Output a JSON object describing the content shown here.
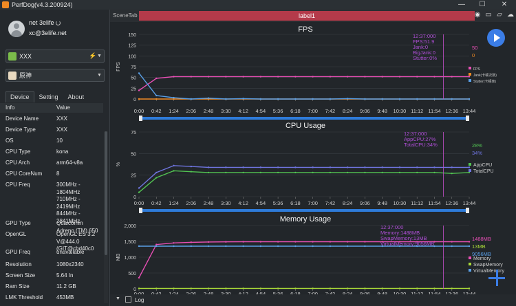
{
  "window": {
    "title": "PerfDog(v4.3.200924)",
    "minimize": "—",
    "restore": "☐",
    "close": "✕"
  },
  "user": {
    "name": "net 3elife",
    "email": "xc@3elife.net"
  },
  "device_select": {
    "value": "XXX"
  },
  "app_select": {
    "value": "原神"
  },
  "tabs": [
    "Device",
    "Setting",
    "About"
  ],
  "info": {
    "header": {
      "key": "Info",
      "value": "Value"
    },
    "rows": [
      {
        "key": "Device Name",
        "value": "XXX"
      },
      {
        "key": "Device Type",
        "value": "XXX"
      },
      {
        "key": "OS",
        "value": "10"
      },
      {
        "key": "CPU Type",
        "value": "kona"
      },
      {
        "key": "CPU Arch",
        "value": "arm64-v8a"
      },
      {
        "key": "CPU CoreNum",
        "value": "8"
      },
      {
        "key": "CPU Freq",
        "value": "300MHz -\n1804MHz\n710MHz -\n2419MHz\n844MHz -\n2841MHz"
      },
      {
        "key": "GPU Type",
        "value": "Qualcomm\nAdreno (TM) 650"
      },
      {
        "key": "OpenGL",
        "value": "OpenGL ES 3.2\nV@444.0\n(GIT@cbd40c0"
      },
      {
        "key": "GPU Freq",
        "value": "unavailable"
      },
      {
        "key": "Resolution",
        "value": "1080x2340"
      },
      {
        "key": "Screen Size",
        "value": "5.64 In"
      },
      {
        "key": "Ram Size",
        "value": "11.2 GB"
      },
      {
        "key": "LMK Threshold",
        "value": "453MB"
      }
    ]
  },
  "scene_tab": {
    "label": "SceneTab",
    "tab": "label1"
  },
  "time_ticks": [
    "0:00",
    "0:42",
    "1:24",
    "2:06",
    "2:48",
    "3:30",
    "4:12",
    "4:54",
    "5:36",
    "6:18",
    "7:00",
    "7:42",
    "8:24",
    "9:06",
    "9:48",
    "10:30",
    "11:12",
    "11:54",
    "12:36",
    "13:44"
  ],
  "charts": [
    {
      "title": "FPS",
      "ylabel": "FPS",
      "yticks": [
        "0",
        "25",
        "50",
        "75",
        "100",
        "125",
        "150"
      ],
      "tooltip": [
        "12:37:000",
        "FPS:51.9",
        "Jank:0",
        "BigJank:0",
        "Stutter:0%"
      ],
      "current_values": [
        {
          "text": "50",
          "color": "#e84fb5"
        },
        {
          "text": "0",
          "color": "#f08a24"
        }
      ],
      "legend": [
        {
          "name": "FPS",
          "color": "#e84fb5"
        },
        {
          "name": "Jank(卡顿次数)",
          "color": "#f08a24"
        },
        {
          "name": "Stutter(卡顿率)",
          "color": "#5aa0e8"
        }
      ]
    },
    {
      "title": "CPU Usage",
      "ylabel": "%",
      "yticks": [
        "0",
        "25",
        "50",
        "75"
      ],
      "tooltip": [
        "12:37:000",
        "AppCPU:27%",
        "TotalCPU:34%"
      ],
      "current_values": [
        {
          "text": "28%",
          "color": "#52c352"
        },
        {
          "text": "34%",
          "color": "#6f75e0"
        }
      ],
      "legend": [
        {
          "name": "AppCPU",
          "color": "#52c352"
        },
        {
          "name": "TotalCPU",
          "color": "#6f75e0"
        }
      ]
    },
    {
      "title": "Memory Usage",
      "ylabel": "MB",
      "yticks": [
        "0",
        "500",
        "1,000",
        "1,500",
        "2,000"
      ],
      "tooltip": [
        "12:37:000",
        "Memory:1488MB",
        "SwapMemory:13MB",
        "VirtualMemory:9056MB"
      ],
      "current_values": [
        {
          "text": "1488MB",
          "color": "#e84fb5"
        },
        {
          "text": "13MB",
          "color": "#a8d838"
        },
        {
          "text": "9056MB",
          "color": "#5aa0e8"
        }
      ],
      "legend": [
        {
          "name": "Memory",
          "color": "#e84fb5"
        },
        {
          "name": "SwapMemory",
          "color": "#a8d838"
        },
        {
          "name": "VirtualMemory",
          "color": "#5aa0e8"
        }
      ]
    }
  ],
  "bottom": {
    "log_label": "Log"
  },
  "chart_data": [
    {
      "type": "line",
      "title": "FPS",
      "ylabel": "FPS",
      "ylim": [
        0,
        150
      ],
      "x": [
        "0:00",
        "0:42",
        "1:24",
        "2:06",
        "2:48",
        "3:30",
        "4:12",
        "4:54",
        "5:36",
        "6:18",
        "7:00",
        "7:42",
        "8:24",
        "9:06",
        "9:48",
        "10:30",
        "11:12",
        "11:54",
        "12:36",
        "13:44"
      ],
      "series": [
        {
          "name": "FPS",
          "values": [
            20,
            48,
            52,
            52,
            52,
            52,
            52,
            52,
            52,
            52,
            52,
            52,
            52,
            52,
            52,
            52,
            52,
            52,
            52,
            52
          ]
        },
        {
          "name": "Jank(卡顿次数)",
          "values": [
            0,
            0,
            0,
            0,
            0,
            0,
            0,
            0,
            0,
            0,
            0,
            0,
            0,
            0,
            0,
            0,
            0,
            0,
            0,
            0
          ]
        },
        {
          "name": "Stutter(卡顿率)",
          "values": [
            60,
            8,
            3,
            0,
            2,
            0,
            1,
            0,
            0,
            0,
            0,
            0,
            1,
            0,
            0,
            0,
            0,
            0,
            0,
            0
          ]
        }
      ]
    },
    {
      "type": "line",
      "title": "CPU Usage",
      "ylabel": "%",
      "ylim": [
        0,
        75
      ],
      "x": [
        "0:00",
        "0:42",
        "1:24",
        "2:06",
        "2:48",
        "3:30",
        "4:12",
        "4:54",
        "5:36",
        "6:18",
        "7:00",
        "7:42",
        "8:24",
        "9:06",
        "9:48",
        "10:30",
        "11:12",
        "11:54",
        "12:36",
        "13:44"
      ],
      "series": [
        {
          "name": "AppCPU",
          "values": [
            5,
            22,
            30,
            29,
            28,
            28,
            28,
            28,
            28,
            28,
            28,
            28,
            28,
            28,
            28,
            28,
            28,
            28,
            27,
            28
          ]
        },
        {
          "name": "TotalCPU",
          "values": [
            10,
            28,
            36,
            35,
            34,
            34,
            34,
            34,
            34,
            34,
            34,
            34,
            34,
            34,
            34,
            34,
            34,
            34,
            34,
            34
          ]
        }
      ]
    },
    {
      "type": "line",
      "title": "Memory Usage",
      "ylabel": "MB",
      "ylim": [
        0,
        2000
      ],
      "x": [
        "0:00",
        "0:42",
        "1:24",
        "2:06",
        "2:48",
        "3:30",
        "4:12",
        "4:54",
        "5:36",
        "6:18",
        "7:00",
        "7:42",
        "8:24",
        "9:06",
        "9:48",
        "10:30",
        "11:12",
        "11:54",
        "12:36",
        "13:44"
      ],
      "series": [
        {
          "name": "Memory",
          "values": [
            350,
            1400,
            1450,
            1470,
            1480,
            1485,
            1488,
            1488,
            1488,
            1488,
            1488,
            1488,
            1488,
            1488,
            1488,
            1488,
            1488,
            1488,
            1488,
            1488
          ]
        },
        {
          "name": "SwapMemory",
          "values": [
            13,
            13,
            13,
            13,
            13,
            13,
            13,
            13,
            13,
            13,
            13,
            13,
            13,
            13,
            13,
            13,
            13,
            13,
            13,
            13
          ]
        },
        {
          "name": "VirtualMemory",
          "values": [
            9000,
            9056,
            9056,
            9056,
            9056,
            9056,
            9056,
            9056,
            9056,
            9056,
            9056,
            9056,
            9056,
            9056,
            9056,
            9056,
            9056,
            9056,
            9056,
            9056
          ]
        }
      ]
    }
  ]
}
